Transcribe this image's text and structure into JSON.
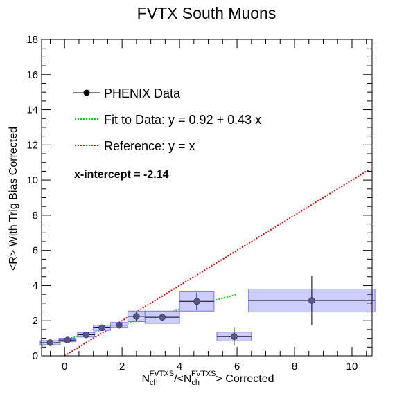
{
  "chart_data": {
    "type": "scatter",
    "title": "FVTX South Muons",
    "ylabel": "<R> With Trig Bias Corrected",
    "xlabel": {
      "main": "N",
      "sub1": "ch",
      "sup1": "FVTXS",
      "mid": "/<N",
      "sub2": "ch",
      "sup2": "FVTXS",
      "end": "> Corrected"
    },
    "xlim": [
      -0.8,
      10.7
    ],
    "ylim": [
      0,
      18
    ],
    "x_ticks": [
      0,
      2,
      4,
      6,
      8,
      10
    ],
    "y_ticks": [
      0,
      2,
      4,
      6,
      8,
      10,
      12,
      14,
      16,
      18
    ],
    "grid": false,
    "legend_position": "top-left",
    "series": [
      {
        "name": "PHENIX Data",
        "style": "points",
        "color": "#000000",
        "points": [
          {
            "x": -0.5,
            "y": 0.75,
            "xerr": 0.35,
            "ylo": 0.6,
            "yhi": 0.9,
            "box_ylo": 0.63,
            "box_yhi": 0.87
          },
          {
            "x": 0.1,
            "y": 0.9,
            "xerr": 0.3,
            "ylo": 0.78,
            "yhi": 1.02,
            "box_ylo": 0.8,
            "box_yhi": 1.0
          },
          {
            "x": 0.75,
            "y": 1.2,
            "xerr": 0.3,
            "ylo": 1.05,
            "yhi": 1.35,
            "box_ylo": 1.07,
            "box_yhi": 1.33
          },
          {
            "x": 1.3,
            "y": 1.6,
            "xerr": 0.3,
            "ylo": 1.42,
            "yhi": 1.78,
            "box_ylo": 1.45,
            "box_yhi": 1.75
          },
          {
            "x": 1.9,
            "y": 1.75,
            "xerr": 0.3,
            "ylo": 1.58,
            "yhi": 1.92,
            "box_ylo": 1.6,
            "box_yhi": 1.9
          },
          {
            "x": 2.5,
            "y": 2.25,
            "xerr": 0.3,
            "ylo": 2.0,
            "yhi": 2.5,
            "box_ylo": 1.95,
            "box_yhi": 2.55
          },
          {
            "x": 3.4,
            "y": 2.2,
            "xerr": 0.6,
            "ylo": 2.0,
            "yhi": 2.4,
            "box_ylo": 1.85,
            "box_yhi": 2.55
          },
          {
            "x": 4.6,
            "y": 3.1,
            "xerr": 0.6,
            "ylo": 2.6,
            "yhi": 3.6,
            "box_ylo": 2.55,
            "box_yhi": 3.65
          },
          {
            "x": 5.9,
            "y": 1.1,
            "xerr": 0.6,
            "ylo": 0.6,
            "yhi": 1.6,
            "box_ylo": 0.85,
            "box_yhi": 1.35
          },
          {
            "x": 8.6,
            "y": 3.15,
            "xerr": 2.2,
            "ylo": 1.75,
            "yhi": 4.55,
            "box_ylo": 2.5,
            "box_yhi": 3.8
          }
        ]
      },
      {
        "name": "Fit to Data: y = 0.92 + 0.43 x",
        "style": "dotted-line",
        "color": "#00dd00",
        "intercept": 0.92,
        "slope": 0.43,
        "x_range": [
          -0.8,
          6.0
        ]
      },
      {
        "name": "Reference: y = x",
        "style": "dotted-line",
        "color": "#dd0000",
        "intercept": 0.0,
        "slope": 1.0,
        "x_range": [
          0.0,
          10.6
        ]
      }
    ],
    "annotations": [
      "x-intercept = -2.14"
    ],
    "colors": {
      "box_fill": "#ccccff",
      "box_stroke": "#7777ee",
      "marker_fill": "#555588"
    }
  }
}
